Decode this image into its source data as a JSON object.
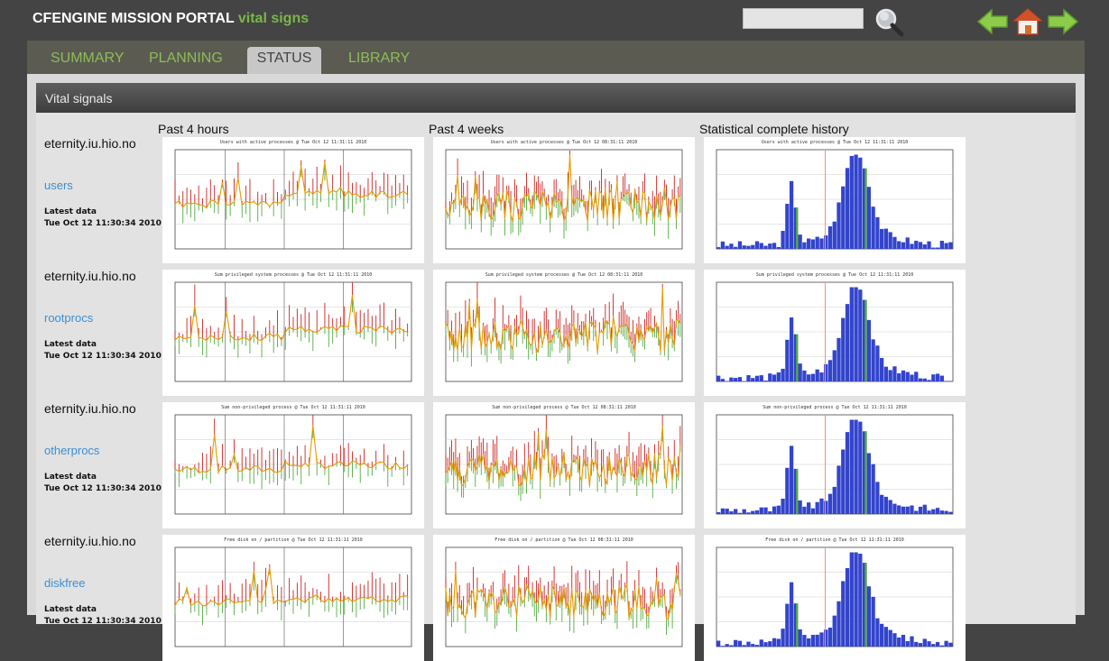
{
  "header": {
    "brand": "CFENGINE MISSION PORTAL",
    "brand_sub": "vital signs",
    "search": {
      "value": "",
      "placeholder": ""
    }
  },
  "icons": {
    "search": "search-magnifier-icon",
    "back": "back-arrow-icon",
    "home": "home-icon",
    "forward": "forward-arrow-icon"
  },
  "tabs": [
    {
      "label": "SUMMARY",
      "active": false
    },
    {
      "label": "PLANNING",
      "active": false
    },
    {
      "label": "STATUS",
      "active": true
    },
    {
      "label": "LIBRARY",
      "active": false
    }
  ],
  "panel": {
    "title": "Vital signals",
    "columns": [
      "Past 4 hours",
      "Past 4 weeks",
      "Statistical complete history"
    ]
  },
  "rows": [
    {
      "host": "eternity.iu.hio.no",
      "metric": "users",
      "latest_label": "Latest data",
      "latest_time": "Tue Oct 12 11:30:34 2010",
      "graph_titles": [
        "Users with active processes @ Tue Oct 12 11:31:11 2010",
        "Users with active processes @ Tue Oct 12 08:31:11 2010",
        "Users with active processes @ Tue Oct 12 11:31:11 2010"
      ]
    },
    {
      "host": "eternity.iu.hio.no",
      "metric": "rootprocs",
      "latest_label": "Latest data",
      "latest_time": "Tue Oct 12 11:30:34 2010",
      "graph_titles": [
        "Sum privileged system processes @ Tue Oct 12 11:31:11 2010",
        "Sum privileged system processes @ Tue Oct 12 08:31:11 2010",
        "Sum privileged system processes @ Tue Oct 12 11:31:11 2010"
      ]
    },
    {
      "host": "eternity.iu.hio.no",
      "metric": "otherprocs",
      "latest_label": "Latest data",
      "latest_time": "Tue Oct 12 11:30:34 2010",
      "graph_titles": [
        "Sum non-privileged process @ Tue Oct 12 11:31:11 2010",
        "Sum non-privileged process @ Tue Oct 12 08:31:11 2010",
        "Sum non-privileged process @ Tue Oct 12 11:31:11 2010"
      ]
    },
    {
      "host": "eternity.iu.hio.no",
      "metric": "diskfree",
      "latest_label": "Latest data",
      "latest_time": "Tue Oct 12 11:30:34 2010",
      "graph_titles": [
        "Free disk on / partition @ Tue Oct 12 11:31:11 2010",
        "Free disk on / partition @ Tue Oct 12 08:31:11 2010",
        "Free disk on / partition @ Tue Oct 12 11:31:11 2010"
      ]
    }
  ],
  "colors": {
    "brand_accent": "#7ab648",
    "tab_text": "#8dbd55",
    "link": "#3d8fd1",
    "series_max": "#cc2222",
    "series_min": "#55aa44",
    "series_avg": "#e69a00",
    "histogram_bar": "#3344cc"
  }
}
